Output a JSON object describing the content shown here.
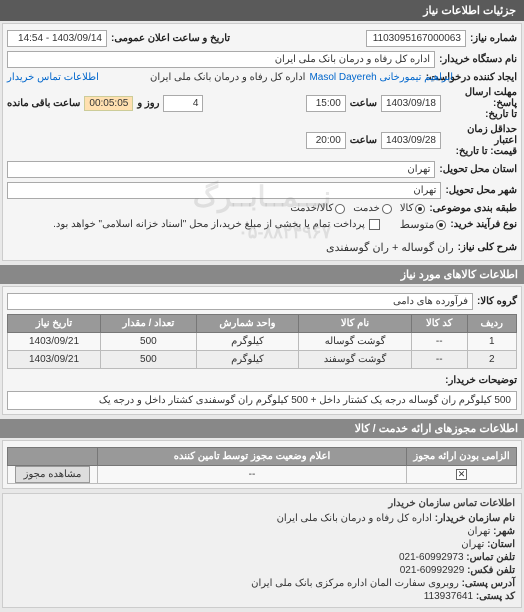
{
  "header": {
    "title": "جزئیات اطلاعات نیاز"
  },
  "main": {
    "need_no_label": "شماره نیاز:",
    "need_no": "1103095167000063",
    "announce_label": "تاریخ و ساعت اعلان عمومی:",
    "announce_value": "1403/09/14 - 14:54",
    "buyer_org_label": "نام دستگاه خریدار:",
    "buyer_org": "اداره کل رفاه و درمان بانک ملی ایران",
    "creator_label": "ایجاد کننده درخواست:",
    "creator_name": "ابراهیم تیمورخانی Masol Dayereh",
    "creator_org": "اداره کل رفاه و درمان بانک ملی ایران",
    "contact_link": "اطلاعات تماس خریدار",
    "reply_deadline_label": "مهلت ارسال پاسخ:\nتا تاریخ:",
    "reply_date": "1403/09/18",
    "reply_time_label": "ساعت",
    "reply_time": "15:00",
    "remain_days": "4",
    "remain_days_label": "روز و",
    "remain_time": "00:05:05",
    "remain_time_label": "ساعت باقی مانده",
    "valid_label": "حداقل زمان اعتبار\nقیمت: تا تاریخ:",
    "valid_date": "1403/09/28",
    "valid_time_label": "ساعت",
    "valid_time": "20:00",
    "province_label": "استان محل تحویل:",
    "province": "تهران",
    "city_label": "شهر محل تحویل:",
    "city": "تهران",
    "category_label": "طبقه بندی موضوعی:",
    "cat_kala": "کالا",
    "cat_khadamat": "خدمت",
    "cat_kala_khadamat": "کالا/خدمت",
    "process_label": "نوع فرآیند خرید:",
    "proc_med": "متوسط",
    "pay_note": "پرداخت تمام یا بخشی از مبلغ خرید،از محل \"اسناد خزانه اسلامی\" خواهد بود.",
    "need_title_label": "شرح کلی نیاز:",
    "need_title": "ران گوساله + ران گوسفندی"
  },
  "goods": {
    "header": "اطلاعات کالاهای مورد نیاز",
    "group_label": "گروه کالا:",
    "group_value": "فرآورده های دامی",
    "columns": {
      "row": "ردیف",
      "code": "کد کالا",
      "name": "نام کالا",
      "unit": "واحد شمارش",
      "qty": "تعداد / مقدار",
      "date": "تاریخ نیاز"
    },
    "rows": [
      {
        "row": "1",
        "code": "--",
        "name": "گوشت گوساله",
        "unit": "کیلوگرم",
        "qty": "500",
        "date": "1403/09/21"
      },
      {
        "row": "2",
        "code": "--",
        "name": "گوشت گوسفند",
        "unit": "کیلوگرم",
        "qty": "500",
        "date": "1403/09/21"
      }
    ],
    "buyer_note_label": "توضیحات خریدار:",
    "buyer_note": "500 کیلوگرم ران گوساله درجه یک کشتار داخل + 500 کیلوگرم ران گوسفندی کشتار داخل و درجه یک"
  },
  "permits": {
    "header": "اطلاعات مجوزهای ارائه خدمت / کالا",
    "columns": {
      "required": "الزامی بودن ارائه مجوز",
      "status": "اعلام وضعیت مجوز توسط تامین کننده",
      "empty": ""
    },
    "row": {
      "status": "--",
      "dash": "--",
      "btn": "مشاهده مجوز"
    }
  },
  "contact": {
    "title": "اطلاعات تماس سازمان خریدار",
    "org_label": "نام سازمان خریدار:",
    "org": "اداره کل رفاه و درمان بانک ملی ایران",
    "city_label": "شهر:",
    "city": "تهران",
    "province_label": "استان:",
    "province": "تهران",
    "phone_label": "تلفن تماس:",
    "phone": "60992973-021",
    "fax_label": "تلفن فکس:",
    "fax": "60992929-021",
    "address_label": "آدرس پستی:",
    "address": "روبروی سفارت المان اداره مرکزی بانک ملی ایران",
    "postcode_label": "کد پستی:",
    "postcode": "113937641"
  }
}
